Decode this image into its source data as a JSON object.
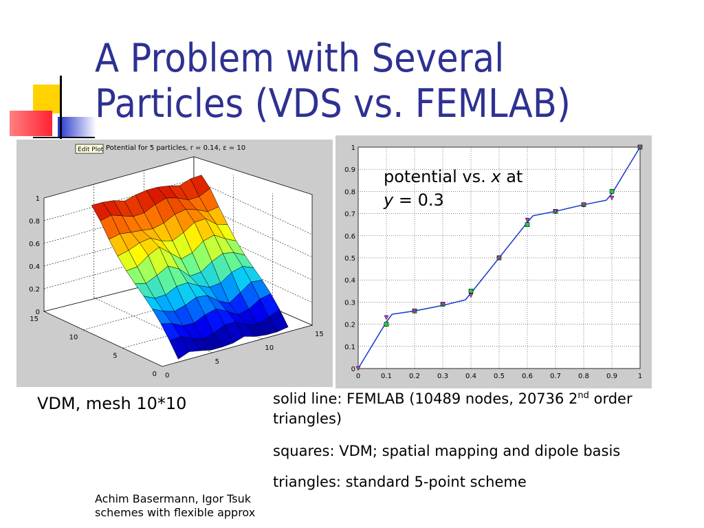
{
  "slide": {
    "title_line1": "A Problem with Several",
    "title_line2": "Particles (VDS vs. FEMLAB)",
    "colors": {
      "title": "#2e3192",
      "accent_yellow": "#ffd700",
      "accent_blue": "#2233cc",
      "accent_red": "#ff3344"
    }
  },
  "left_plot": {
    "edit_button": "Edit Plot",
    "title": "Potential for 5 particles, r = 0.14, ε = 10",
    "z_ticks": [
      "0",
      "0.2",
      "0.4",
      "0.6",
      "0.8",
      "1"
    ],
    "y_ticks": [
      "0",
      "5",
      "10",
      "15"
    ],
    "x_ticks": [
      "0",
      "5",
      "10",
      "15"
    ],
    "caption": "VDM, mesh 10*10"
  },
  "right_plot": {
    "label_line1_a": "potential vs. ",
    "label_line1_x": "x",
    "label_line1_b": " at",
    "label_line2_y": "y",
    "label_line2_b": " = 0.3"
  },
  "chart_data": {
    "type": "line",
    "xlim": [
      0,
      1
    ],
    "ylim": [
      0,
      1
    ],
    "x_ticks": [
      "0",
      "0.1",
      "0.2",
      "0.3",
      "0.4",
      "0.5",
      "0.6",
      "0.7",
      "0.8",
      "0.9",
      "1"
    ],
    "y_ticks": [
      "0",
      "0.1",
      "0.2",
      "0.3",
      "0.4",
      "0.5",
      "0.6",
      "0.7",
      "0.8",
      "0.9",
      "1"
    ],
    "grid": true,
    "series": [
      {
        "name": "FEMLAB",
        "marker": "line",
        "color": "#1f3fd0",
        "x": [
          0,
          0.1,
          0.12,
          0.2,
          0.3,
          0.38,
          0.4,
          0.5,
          0.6,
          0.62,
          0.7,
          0.8,
          0.88,
          0.9,
          1
        ],
        "y": [
          0,
          0.21,
          0.245,
          0.26,
          0.285,
          0.31,
          0.34,
          0.5,
          0.66,
          0.69,
          0.71,
          0.74,
          0.76,
          0.79,
          1
        ]
      },
      {
        "name": "VDM",
        "marker": "square",
        "color": "#22cc44",
        "x": [
          0.1,
          0.2,
          0.3,
          0.4,
          0.5,
          0.6,
          0.7,
          0.8,
          0.9,
          1
        ],
        "y": [
          0.2,
          0.26,
          0.29,
          0.35,
          0.5,
          0.65,
          0.71,
          0.74,
          0.8,
          1
        ]
      },
      {
        "name": "standard 5-point",
        "marker": "triangle",
        "color": "#cc33cc",
        "x": [
          0,
          0.1,
          0.2,
          0.3,
          0.4,
          0.5,
          0.6,
          0.7,
          0.8,
          0.9,
          1
        ],
        "y": [
          0,
          0.23,
          0.26,
          0.29,
          0.33,
          0.5,
          0.67,
          0.71,
          0.74,
          0.77,
          1
        ]
      }
    ]
  },
  "legend_text": {
    "line1_a": "solid line: FEMLAB (10489 nodes, 20736 2",
    "line1_sup": "nd",
    "line1_b": " order",
    "line1_c": "triangles)",
    "line2": "squares: VDM; spatial mapping and dipole basis",
    "line3": "triangles: standard 5-point scheme"
  },
  "footer": {
    "line1": "Achim Basermann, Igor Tsuk",
    "line2": "schemes with flexible approx"
  }
}
